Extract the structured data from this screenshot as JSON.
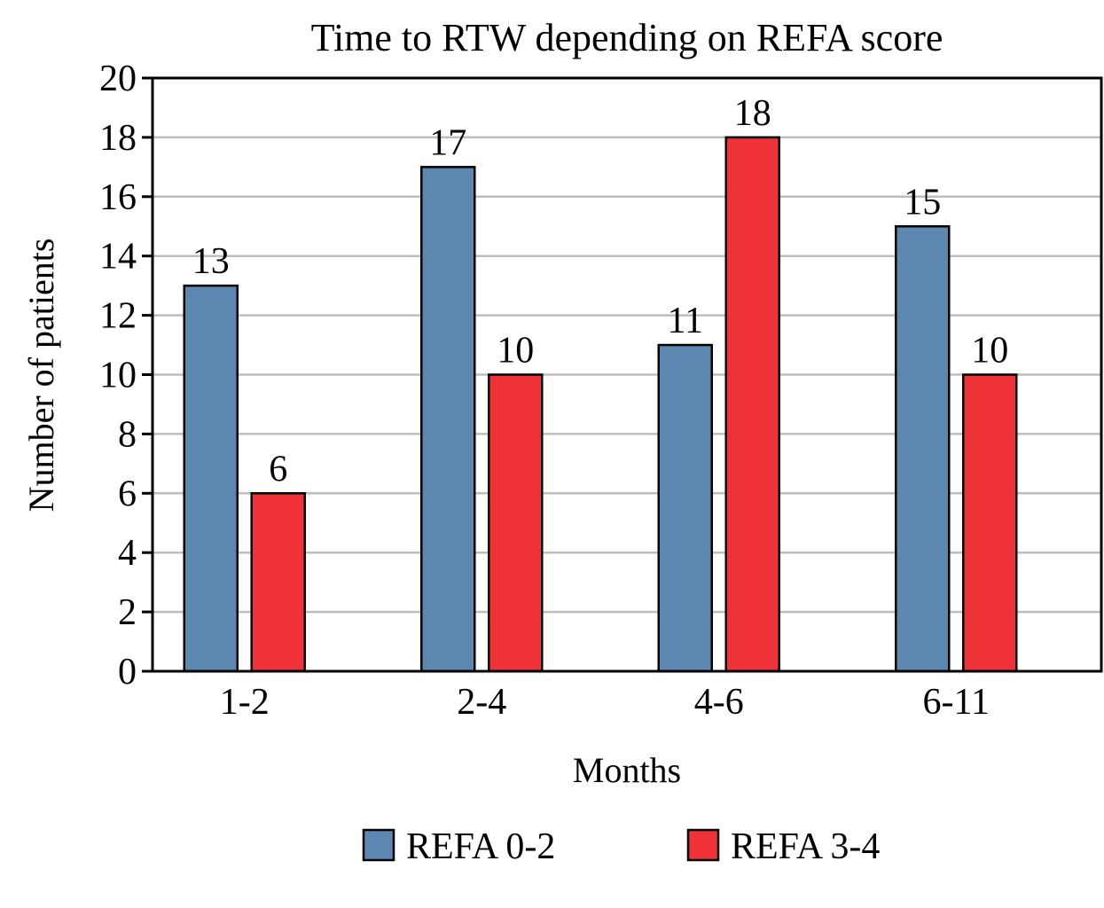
{
  "chart_data": {
    "type": "bar",
    "title": "Time to RTW depending on REFA score",
    "xlabel": "Months",
    "ylabel": "Number of patients",
    "categories": [
      "1-2",
      "2-4",
      "4-6",
      "6-11"
    ],
    "series": [
      {
        "name": "REFA 0-2",
        "color": "#5b87b1",
        "values": [
          13,
          17,
          11,
          15
        ]
      },
      {
        "name": "REFA 3-4",
        "color": "#ee3237",
        "values": [
          6,
          10,
          18,
          10
        ]
      }
    ],
    "ylim": [
      0,
      20
    ],
    "yticks": [
      0,
      2,
      4,
      6,
      8,
      10,
      12,
      14,
      16,
      18,
      20
    ],
    "grid": true,
    "legend_position": "bottom"
  }
}
